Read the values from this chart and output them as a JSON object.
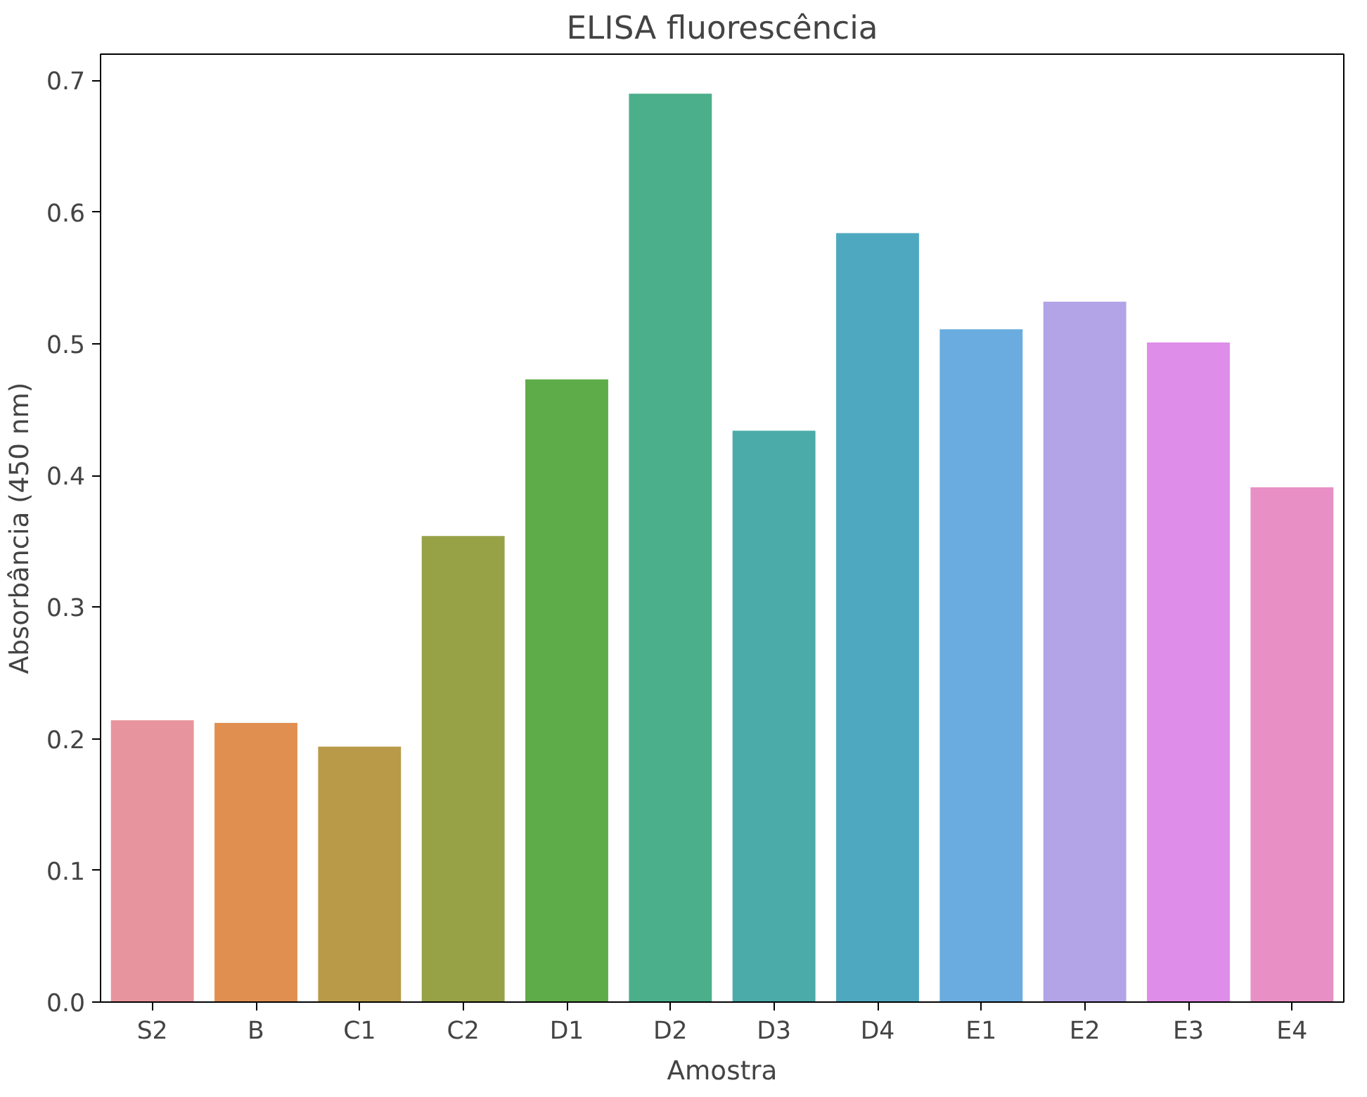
{
  "chart_data": {
    "type": "bar",
    "title": "ELISA fluorescência",
    "xlabel": "Amostra",
    "ylabel": "Absorbância (450 nm)",
    "categories": [
      "S2",
      "B",
      "C1",
      "C2",
      "D1",
      "D2",
      "D3",
      "D4",
      "E1",
      "E2",
      "E3",
      "E4"
    ],
    "values": [
      0.214,
      0.212,
      0.194,
      0.354,
      0.473,
      0.69,
      0.434,
      0.584,
      0.511,
      0.532,
      0.501,
      0.391
    ],
    "colors": [
      "#e8949e",
      "#e08f51",
      "#b89a49",
      "#97a247",
      "#5eab4a",
      "#4aaf8a",
      "#4aaba8",
      "#4ea9c0",
      "#6aacdf",
      "#b3a4e8",
      "#de8de8",
      "#e890c5"
    ],
    "ylim": [
      0,
      0.72
    ],
    "yticks": [
      {
        "value": 0,
        "label": "0.0"
      },
      0.1,
      0.2,
      0.3,
      0.4,
      0.5,
      0.6,
      0.7
    ],
    "grid": false
  }
}
